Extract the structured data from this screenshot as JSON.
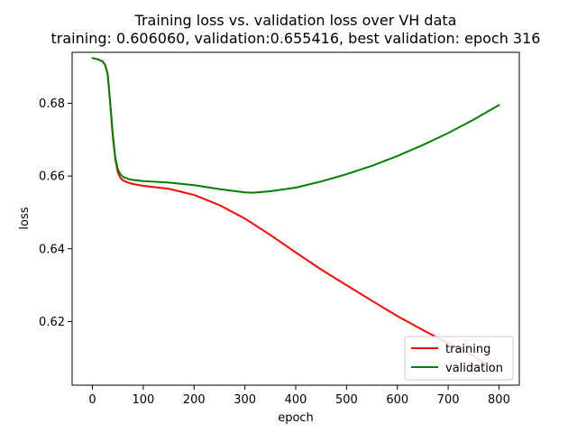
{
  "chart_data": {
    "type": "line",
    "title": "Training loss vs. validation loss over VH data",
    "subtitle": "training: 0.606060, validation:0.655416, best validation: epoch 316",
    "xlabel": "epoch",
    "ylabel": "loss",
    "xlim": [
      -40,
      840
    ],
    "ylim": [
      0.6025,
      0.694
    ],
    "xticks": [
      0,
      100,
      200,
      300,
      400,
      500,
      600,
      700,
      800
    ],
    "yticks": [
      0.62,
      0.64,
      0.66,
      0.68
    ],
    "ytick_labels": [
      "0.62",
      "0.64",
      "0.66",
      "0.68"
    ],
    "grid": false,
    "legend_position": "lower-right",
    "series": [
      {
        "name": "training",
        "color": "#ff0000",
        "x": [
          0,
          10,
          20,
          25,
          30,
          35,
          40,
          45,
          50,
          55,
          60,
          70,
          80,
          100,
          150,
          200,
          250,
          300,
          350,
          400,
          450,
          500,
          550,
          600,
          650,
          700,
          750,
          800
        ],
        "y": [
          0.6924,
          0.6921,
          0.6915,
          0.6905,
          0.688,
          0.68,
          0.671,
          0.6645,
          0.661,
          0.6595,
          0.6588,
          0.6582,
          0.6578,
          0.6573,
          0.6565,
          0.6548,
          0.652,
          0.6483,
          0.6438,
          0.639,
          0.6343,
          0.63,
          0.6257,
          0.6215,
          0.6177,
          0.614,
          0.6105,
          0.606
        ]
      },
      {
        "name": "validation",
        "color": "#008000",
        "x": [
          0,
          10,
          20,
          25,
          30,
          35,
          40,
          45,
          50,
          55,
          60,
          70,
          80,
          100,
          150,
          200,
          250,
          300,
          316,
          350,
          400,
          450,
          500,
          550,
          600,
          650,
          700,
          750,
          800
        ],
        "y": [
          0.6924,
          0.6921,
          0.6915,
          0.6905,
          0.688,
          0.68,
          0.6715,
          0.665,
          0.6618,
          0.6605,
          0.6598,
          0.6592,
          0.6589,
          0.6586,
          0.6582,
          0.6575,
          0.6564,
          0.6555,
          0.6554,
          0.6558,
          0.6568,
          0.6585,
          0.6605,
          0.6628,
          0.6655,
          0.6685,
          0.6718,
          0.6755,
          0.6795
        ]
      }
    ]
  }
}
